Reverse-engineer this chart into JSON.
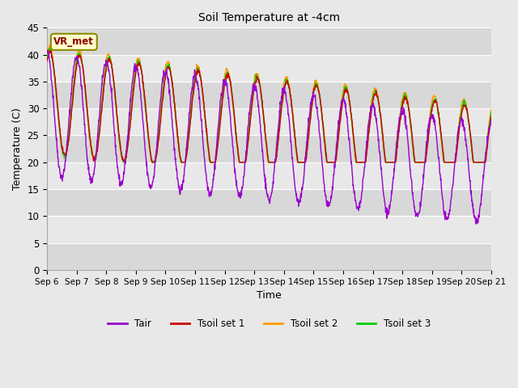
{
  "title": "Soil Temperature at -4cm",
  "xlabel": "Time",
  "ylabel": "Temperature (C)",
  "ylim": [
    0,
    45
  ],
  "annotation_text": "VR_met",
  "legend_labels": [
    "Tair",
    "Tsoil set 1",
    "Tsoil set 2",
    "Tsoil set 3"
  ],
  "line_colors": [
    "#9900cc",
    "#cc0000",
    "#ff9900",
    "#00cc00"
  ],
  "background_color": "#e8e8e8",
  "plot_bg_color": "#e8e8e8",
  "grid_color": "#ffffff",
  "x_tick_labels": [
    "Sep 6",
    "Sep 7",
    "Sep 8",
    "Sep 9",
    "Sep 10",
    "Sep 11",
    "Sep 12",
    "Sep 13",
    "Sep 14",
    "Sep 15",
    "Sep 16",
    "Sep 17",
    "Sep 18",
    "Sep 19",
    "Sep 20",
    "Sep 21"
  ],
  "n_days": 15,
  "pts_per_day": 96
}
